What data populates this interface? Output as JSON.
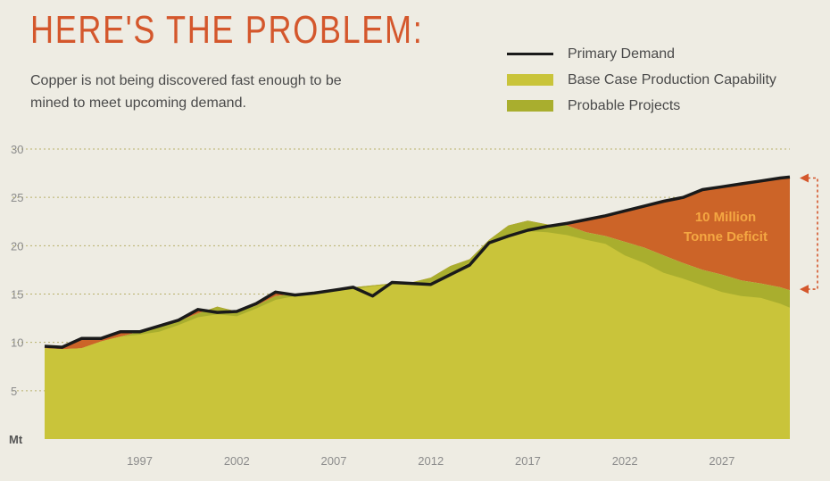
{
  "header": {
    "title": "HERE'S THE PROBLEM:",
    "subtitle": "Copper is not being discovered fast enough to be mined to meet upcoming demand."
  },
  "legend": [
    {
      "label": "Primary Demand",
      "kind": "line",
      "color": "#1a1a1a"
    },
    {
      "label": "Base Case Production Capability",
      "kind": "area",
      "color": "#c9c43a"
    },
    {
      "label": "Probable Projects",
      "kind": "area",
      "color": "#a9ae2e"
    }
  ],
  "colors": {
    "background": "#eeece3",
    "title": "#d4572c",
    "deficit": "#cc6428",
    "deficit_text": "#f4a742",
    "grid": "#b8b06a"
  },
  "chart_data": {
    "type": "area",
    "title": "HERE'S THE PROBLEM:",
    "ylabel": "Mt",
    "xlabel": "",
    "ylim": [
      0,
      30
    ],
    "xlim": [
      1992.1,
      2030.5
    ],
    "yticks": [
      5,
      10,
      15,
      20,
      25,
      30
    ],
    "xticks": [
      1997,
      2002,
      2007,
      2012,
      2017,
      2022,
      2027
    ],
    "grid": true,
    "legend_position": "top-right",
    "annotation": {
      "text_lines": [
        "10 Million",
        "Tonne Deficit"
      ],
      "x": 2030.5,
      "y_top": 27,
      "y_bottom": 15.5
    },
    "x": [
      1992.1,
      1993,
      1994,
      1995,
      1996,
      1997,
      1998,
      1999,
      2000,
      2001,
      2002,
      2003,
      2004,
      2005,
      2006,
      2007,
      2008,
      2009,
      2010,
      2011,
      2012,
      2013,
      2014,
      2015,
      2016,
      2017,
      2018,
      2019,
      2020,
      2021,
      2022,
      2023,
      2024,
      2025,
      2026,
      2027,
      2028,
      2029,
      2030,
      2030.5
    ],
    "series": [
      {
        "name": "Primary Demand",
        "kind": "line",
        "values": [
          9.6,
          9.5,
          10.4,
          10.4,
          11.1,
          11.1,
          11.7,
          12.3,
          13.4,
          13.1,
          13.2,
          14.0,
          15.2,
          14.9,
          15.1,
          15.4,
          15.7,
          14.8,
          16.2,
          16.1,
          16.0,
          17.0,
          18.0,
          20.3,
          21.0,
          21.6,
          22.0,
          22.3,
          22.7,
          23.1,
          23.6,
          24.1,
          24.6,
          25.0,
          25.8,
          26.1,
          26.4,
          26.7,
          27.0,
          27.1
        ]
      },
      {
        "name": "Base Case Production Capability",
        "kind": "area",
        "values": [
          9.4,
          9.3,
          9.4,
          10.1,
          10.6,
          10.8,
          11.1,
          11.8,
          12.6,
          12.9,
          12.7,
          13.5,
          14.4,
          14.8,
          15.0,
          15.3,
          15.5,
          15.8,
          16.0,
          16.1,
          16.2,
          17.1,
          18.3,
          20.1,
          20.9,
          21.5,
          21.4,
          21.1,
          20.6,
          20.2,
          19.0,
          18.2,
          17.2,
          16.6,
          15.9,
          15.2,
          14.8,
          14.6,
          14.0,
          13.6
        ]
      },
      {
        "name": "Probable Projects",
        "kind": "area",
        "values": [
          9.4,
          9.3,
          9.4,
          10.1,
          10.6,
          11.1,
          11.7,
          12.2,
          13.0,
          13.7,
          13.2,
          13.8,
          14.8,
          15.0,
          15.2,
          15.5,
          15.7,
          15.9,
          16.1,
          16.2,
          16.7,
          17.9,
          18.6,
          20.6,
          22.1,
          22.6,
          22.2,
          22.1,
          21.4,
          21.0,
          20.4,
          19.8,
          19.0,
          18.2,
          17.5,
          17.0,
          16.4,
          16.1,
          15.7,
          15.4
        ]
      }
    ]
  }
}
